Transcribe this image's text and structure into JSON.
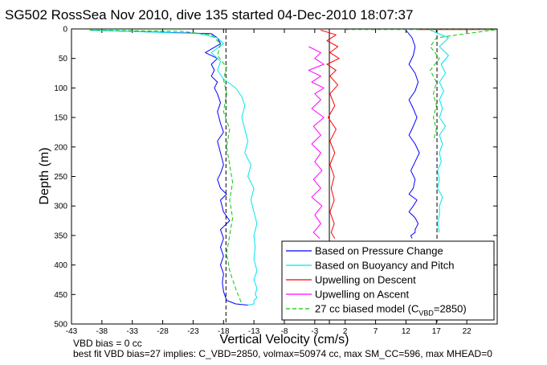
{
  "chart_data": {
    "type": "line",
    "title": "SG502 RossSea Nov 2010, dive 135 started 04-Dec-2010 18:07:37",
    "xlabel": "Vertical Velocity (cm/s)",
    "ylabel": "Depth (m)",
    "xlim": [
      -43,
      27
    ],
    "ylim": [
      0,
      500
    ],
    "y_reversed": true,
    "xticks": [
      -43,
      -38,
      -33,
      -28,
      -23,
      -18,
      -13,
      -8,
      -3,
      2,
      7,
      12,
      17,
      22
    ],
    "yticks": [
      0,
      50,
      100,
      150,
      200,
      250,
      300,
      350,
      400,
      450,
      500
    ],
    "grid": false,
    "legend_position": "bottom-right",
    "reference_lines": [
      {
        "x": -17.6,
        "style": "dashed",
        "color": "#000000"
      },
      {
        "x": -0.6,
        "style": "solid",
        "color": "#000000"
      },
      {
        "x": 17.1,
        "style": "dashed",
        "color": "#000000"
      }
    ],
    "series": [
      {
        "name": "Based on Pressure Change",
        "color": "#0000ff",
        "style": "solid",
        "groups": [
          {
            "x": [
              -40,
              -20,
              -19,
              -18.5,
              -21,
              -19,
              -20,
              -19.5,
              -20,
              -19,
              -19.5,
              -19,
              -18.5,
              -19,
              -18.5,
              -18,
              -19,
              -18.5,
              -18,
              -18.5,
              -19,
              -18.5,
              -17.5,
              -18.5,
              -18,
              -17,
              -18.5,
              -18,
              -18.5,
              -18,
              -18.5,
              -18,
              -18.2,
              -18,
              -17.5,
              -16,
              -14
            ],
            "y": [
              2,
              8,
              15,
              25,
              40,
              50,
              60,
              70,
              80,
              90,
              100,
              110,
              125,
              140,
              160,
              175,
              190,
              210,
              230,
              245,
              255,
              270,
              280,
              290,
              310,
              325,
              340,
              355,
              370,
              385,
              400,
              415,
              430,
              445,
              460,
              466,
              468
            ]
          },
          {
            "x": [
              12,
              13,
              13.5,
              13.2,
              12.5,
              13.5,
              14,
              13.5,
              12.5,
              13.2,
              13.8,
              13.2,
              12.5,
              13.5,
              14.2,
              13.5,
              12.8,
              13.5,
              13.2,
              12.5,
              13.8,
              13.2,
              12.5,
              13.5,
              14,
              13.5,
              13.5,
              12.8,
              13
            ],
            "y": [
              2,
              15,
              30,
              45,
              60,
              75,
              90,
              105,
              120,
              135,
              150,
              165,
              180,
              195,
              210,
              225,
              240,
              255,
              270,
              280,
              290,
              300,
              310,
              320,
              330,
              340,
              345,
              350,
              355
            ]
          }
        ]
      },
      {
        "name": "Based on Buoyancy and Pitch",
        "color": "#00e5ee",
        "style": "solid",
        "groups": [
          {
            "x": [
              -40,
              -22,
              -19,
              -18,
              -20,
              -18.5,
              -19,
              -18,
              -16,
              -15,
              -14.5,
              -15,
              -14.5,
              -14,
              -14.5,
              -13.5,
              -14,
              -13,
              -13.5,
              -13,
              -12.5,
              -13,
              -12.8,
              -13,
              -12.5,
              -13,
              -12.5,
              -12.8,
              -12.5,
              -13,
              -13,
              -13,
              -14
            ],
            "y": [
              2,
              8,
              15,
              25,
              40,
              55,
              70,
              85,
              100,
              115,
              130,
              150,
              170,
              190,
              210,
              230,
              250,
              270,
              290,
              310,
              330,
              350,
              370,
              390,
              410,
              425,
              440,
              450,
              455,
              460,
              464,
              466,
              468
            ]
          },
          {
            "x": [
              16,
              19,
              17.5,
              19,
              17.8,
              18.5,
              17.5,
              18.2,
              17.5,
              18,
              17.5,
              18.5,
              17.5,
              18,
              17.5,
              17.8,
              17.2,
              17.5,
              17.2,
              18,
              17.5,
              17.5,
              17.2,
              17.5
            ],
            "y": [
              2,
              15,
              30,
              45,
              60,
              75,
              90,
              105,
              120,
              135,
              150,
              165,
              180,
              195,
              210,
              225,
              240,
              255,
              270,
              285,
              300,
              315,
              330,
              345
            ]
          }
        ]
      },
      {
        "name": "Upwelling on Descent",
        "color": "#ff0000",
        "style": "solid",
        "groups": [
          {
            "x": [
              -2,
              0.5,
              -1,
              0.8,
              -0.5,
              1,
              -1,
              0.5,
              -0.5,
              0.8,
              -0.5,
              0.3,
              -0.8,
              0.5,
              -0.5,
              0.3,
              -0.5,
              0.2,
              -0.3,
              0.2,
              -0.5,
              0.2,
              -0.3,
              0.3
            ],
            "y": [
              2,
              10,
              20,
              30,
              40,
              50,
              60,
              70,
              80,
              95,
              110,
              130,
              150,
              170,
              190,
              210,
              230,
              250,
              270,
              290,
              310,
              330,
              345,
              355
            ]
          },
          {
            "x": [
              14,
              27
            ],
            "y": [
              1,
              1
            ]
          }
        ]
      },
      {
        "name": "Upwelling on Ascent",
        "color": "#ff00ff",
        "style": "solid",
        "groups": [
          {
            "x": [
              -4,
              -2,
              -3,
              -1.5,
              -4,
              -2,
              -3.5,
              -1.5,
              -3,
              -2,
              -3.5,
              -1.5,
              -3.2,
              -2,
              -3.5,
              -2,
              -3,
              -1.8,
              -3.2,
              -2,
              -3.5,
              -1.8,
              -3,
              -2,
              -3.2,
              -2.2
            ],
            "y": [
              30,
              40,
              50,
              60,
              70,
              80,
              90,
              100,
              110,
              120,
              135,
              150,
              165,
              180,
              195,
              210,
              225,
              240,
              255,
              270,
              285,
              300,
              315,
              330,
              345,
              355
            ]
          }
        ]
      },
      {
        "name": "27 cc biased model (C",
        "subscript": "VBD",
        "suffix": "=2850)",
        "color": "#00cc00",
        "style": "dashed",
        "groups": [
          {
            "x": [
              -40,
              -25,
              -20,
              -18.5,
              -19,
              -17.5,
              -18,
              -17.5,
              -18,
              -17,
              -17.5,
              -17,
              -16.5,
              -17,
              -16.5,
              -17,
              -17.5,
              -17,
              -16,
              -15
            ],
            "y": [
              2,
              4,
              10,
              25,
              45,
              65,
              85,
              110,
              140,
              170,
              200,
              230,
              260,
              290,
              320,
              350,
              380,
              410,
              440,
              466
            ]
          },
          {
            "x": [
              2,
              27,
              17,
              16,
              17.5,
              16,
              17,
              16.5,
              17,
              16.5,
              17,
              16.5
            ],
            "y": [
              1,
              1,
              15,
              30,
              50,
              70,
              90,
              110,
              130,
              150,
              170,
              190
            ]
          }
        ]
      }
    ]
  },
  "notes": {
    "line1": "VBD bias = 0 cc",
    "line2": "best fit VBD bias=27 implies: C_VBD=2850, volmax=50974 cc, max SM_CC=596, max MHEAD=0"
  }
}
